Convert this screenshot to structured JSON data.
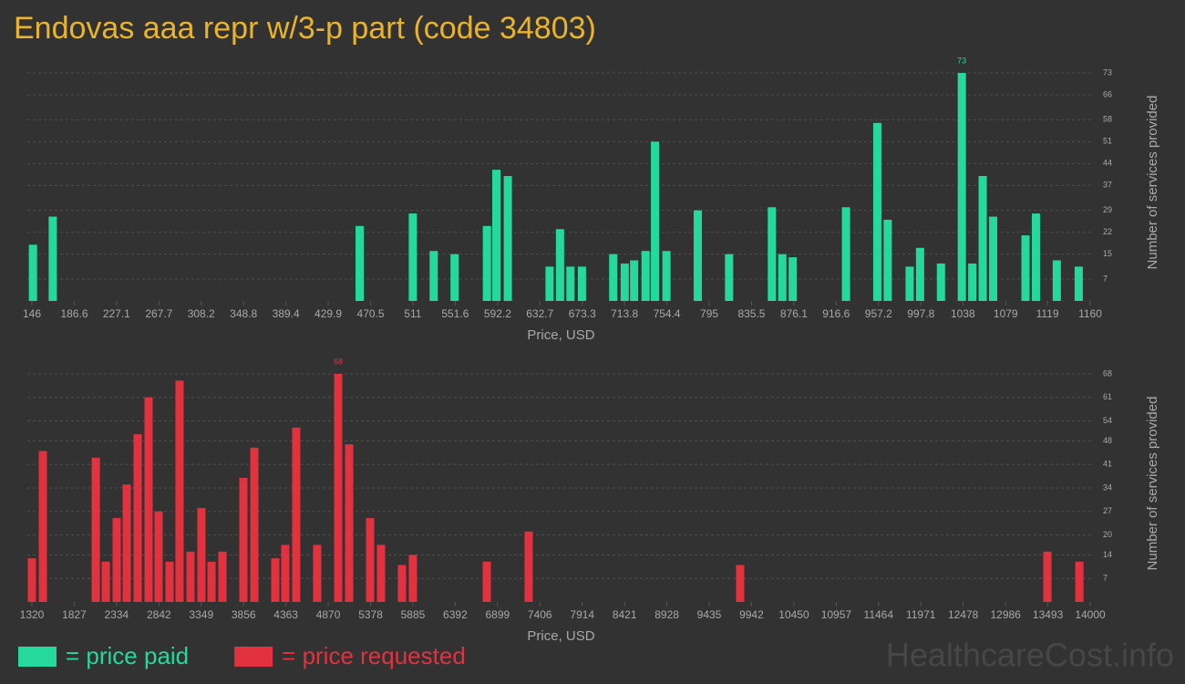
{
  "title": "Endovas aaa repr w/3-p part (code 34803)",
  "watermark": "HealthcareCost.info",
  "chart_data": [
    {
      "type": "bar",
      "x_label": "Price, USD",
      "y_label": "Number of services provided",
      "grid": true,
      "label_max": true,
      "xlim": [
        146,
        1160
      ],
      "xticks": [
        146,
        186.6,
        227.1,
        267.7,
        308.2,
        348.8,
        389.4,
        429.9,
        470.5,
        511,
        551.6,
        592.2,
        632.7,
        673.3,
        713.8,
        754.4,
        795,
        835.5,
        876.1,
        916.6,
        957.2,
        997.8,
        1038,
        1079,
        1119,
        1160
      ],
      "ylim": [
        0,
        73
      ],
      "yticks": [
        7,
        15,
        22,
        29,
        37,
        44,
        51,
        58,
        66,
        73
      ],
      "x": [
        147,
        166,
        460,
        511,
        531,
        551,
        582,
        591,
        602,
        642,
        652,
        662,
        673,
        703,
        714,
        723,
        734,
        743,
        754,
        784,
        814,
        855,
        865,
        875,
        926,
        956,
        966,
        987,
        997,
        1017,
        1037,
        1047,
        1057,
        1067,
        1098,
        1108,
        1128,
        1149
      ],
      "series": [
        {
          "name": "= price paid",
          "color": "#25d89c",
          "values": [
            18,
            27,
            24,
            28,
            16,
            15,
            24,
            42,
            40,
            11,
            23,
            11,
            11,
            15,
            12,
            13,
            16,
            51,
            16,
            29,
            15,
            30,
            15,
            14,
            30,
            57,
            26,
            11,
            17,
            12,
            73,
            12,
            40,
            27,
            21,
            28,
            13,
            11
          ]
        }
      ]
    },
    {
      "type": "bar",
      "x_label": "Price, USD",
      "y_label": "Number of services provided",
      "grid": true,
      "label_max": true,
      "xlim": [
        1320,
        14000
      ],
      "xticks": [
        1320,
        1827,
        2334,
        2842,
        3349,
        3856,
        4363,
        4870,
        5378,
        5885,
        6392,
        6899,
        7406,
        7914,
        8421,
        8928,
        9435,
        9942,
        10450,
        10957,
        11464,
        11971,
        12478,
        12986,
        13493,
        14000
      ],
      "ylim": [
        0,
        68
      ],
      "yticks": [
        7,
        14,
        20,
        27,
        34,
        41,
        48,
        54,
        61,
        68
      ],
      "x": [
        1320,
        1451,
        2085,
        2205,
        2336,
        2456,
        2587,
        2718,
        2838,
        2969,
        3089,
        3220,
        3351,
        3472,
        3603,
        3854,
        3985,
        4236,
        4356,
        4487,
        4738,
        4990,
        5121,
        5372,
        5503,
        5754,
        5885,
        6770,
        7272,
        9806,
        13487,
        13870
      ],
      "series": [
        {
          "name": "= price requested",
          "color": "#e2323f",
          "values": [
            13,
            45,
            43,
            12,
            25,
            35,
            50,
            61,
            27,
            12,
            66,
            15,
            28,
            12,
            15,
            37,
            46,
            13,
            17,
            52,
            17,
            68,
            47,
            25,
            17,
            11,
            14,
            12,
            21,
            11,
            15,
            12
          ]
        }
      ]
    }
  ]
}
